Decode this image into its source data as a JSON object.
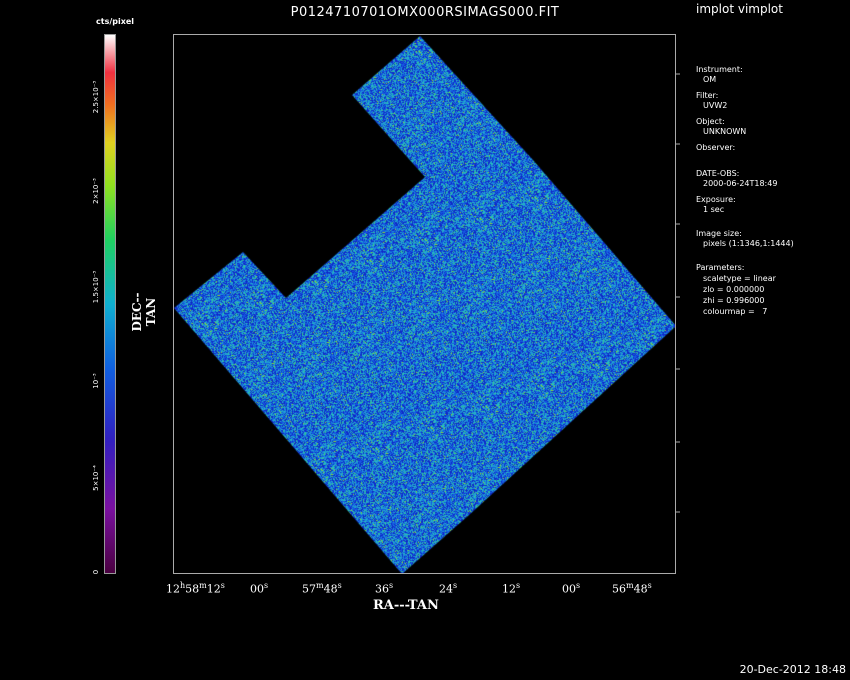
{
  "app": {
    "title": "P0124710701OMX000RSIMAGS000.FIT",
    "program": "implot vimplot",
    "timestamp": "20-Dec-2012 18:48"
  },
  "colorbar": {
    "unit_label": "cts/pixel",
    "tick_labels": [
      "0",
      "5×10⁻⁴",
      "10⁻³",
      "1.5×10⁻³",
      "2×10⁻³",
      "2.5×10⁻³"
    ]
  },
  "axes": {
    "ylabel": "DEC--TAN",
    "xlabel": "RA---TAN",
    "x_ticks": [
      {
        "h": "12",
        "hu": "h",
        "m": "58",
        "mu": "m",
        "s": "12",
        "su": "s"
      },
      {
        "s": "00",
        "su": "s"
      },
      {
        "m": "57",
        "mu": "m",
        "s": "48",
        "su": "s"
      },
      {
        "s": "36",
        "su": "s"
      },
      {
        "s": "24",
        "su": "s"
      },
      {
        "s": "12",
        "su": "s"
      },
      {
        "s": "00",
        "su": "s"
      },
      {
        "m": "56",
        "mu": "m",
        "s": "48",
        "su": "s"
      }
    ]
  },
  "info": {
    "instrument_label": "Instrument:",
    "instrument": "OM",
    "filter_label": "Filter:",
    "filter": "UVW2",
    "object_label": "Object:",
    "object": "UNKNOWN",
    "observer_label": "Observer:",
    "observer": "",
    "date_label": "DATE-OBS:",
    "date": "2000-06-24T18:49",
    "exposure_label": "Exposure:",
    "exposure": "1 sec",
    "imagesize_label": "Image size:",
    "imagesize": "pixels (1:1346,1:1444)",
    "params_label": "Parameters:",
    "scaletype": "scaletype = linear",
    "zlo": "zlo = 0.000000",
    "zhi": "zhi = 0.996000",
    "colourmap": "colourmap =   7"
  },
  "colors": {
    "background": "#000000",
    "noise_low": "#1020d0",
    "noise_mid": "#2090d8",
    "noise_hi": "#30d0a0",
    "noise_peak": "#b0e020"
  }
}
